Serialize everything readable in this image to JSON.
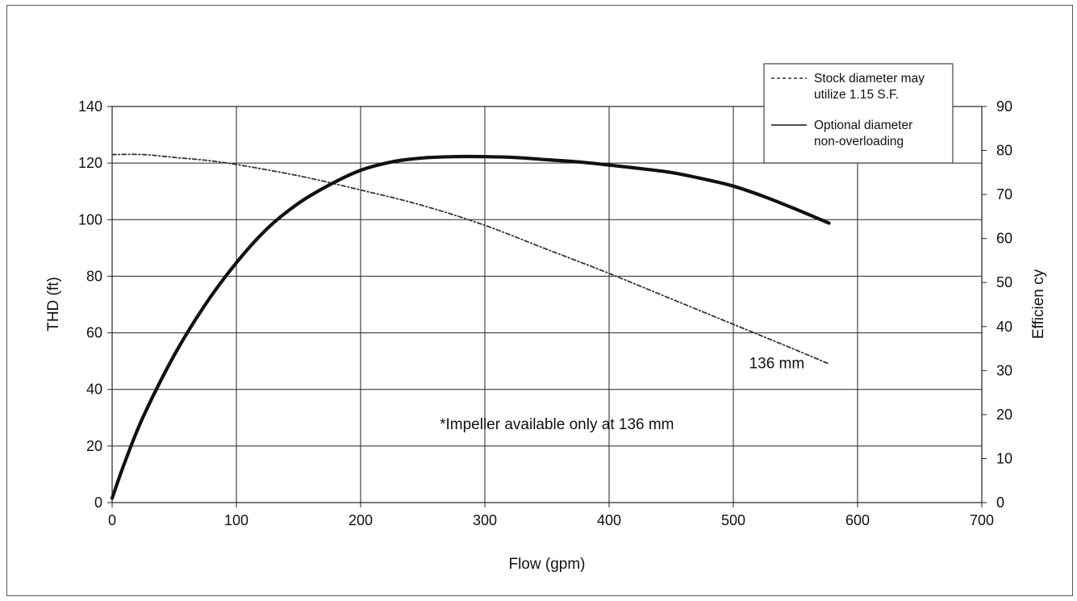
{
  "chart_data": {
    "type": "line",
    "title": "",
    "xlabel": "Flow (gpm)",
    "ylabel": "THD (ft)",
    "y2label": "Efficien cy",
    "xlim": [
      0,
      700
    ],
    "ylim": [
      0,
      140
    ],
    "y2lim": [
      0,
      90
    ],
    "x_ticks": [
      0,
      100,
      200,
      300,
      400,
      500,
      600,
      700
    ],
    "y_ticks": [
      0,
      20,
      40,
      60,
      80,
      100,
      120,
      140
    ],
    "y2_ticks": [
      0,
      10,
      20,
      30,
      40,
      50,
      60,
      70,
      80,
      90
    ],
    "grid": true,
    "legend_position": "top-right",
    "series": [
      {
        "name": "Stock diameter may utilize 1.15 S.F.",
        "legend_lines": [
          "Stock diameter may",
          "utilize 1.15 S.F."
        ],
        "axis": "left",
        "style": "dashdot",
        "color": "#333333",
        "x": [
          0,
          25,
          50,
          75,
          100,
          150,
          200,
          250,
          300,
          350,
          400,
          450,
          500,
          550,
          577
        ],
        "y": [
          123,
          123,
          122,
          121,
          119.5,
          115.5,
          110.5,
          105,
          98,
          89.5,
          81,
          72,
          63,
          54,
          49
        ]
      },
      {
        "name": "Optional diameter non-overloading",
        "legend_lines": [
          "Optional diameter",
          "non-overloading"
        ],
        "axis": "right",
        "style": "solid",
        "color": "#111111",
        "x": [
          0,
          10,
          25,
          50,
          75,
          100,
          125,
          150,
          175,
          200,
          225,
          250,
          275,
          300,
          325,
          350,
          375,
          400,
          425,
          450,
          475,
          500,
          525,
          550,
          577
        ],
        "y": [
          1,
          9,
          19.5,
          33.5,
          45,
          54.5,
          62.3,
          68,
          72.2,
          75.5,
          77.4,
          78.3,
          78.6,
          78.6,
          78.4,
          77.9,
          77.4,
          76.7,
          75.9,
          75,
          73.6,
          71.9,
          69.5,
          66.7,
          63.5
        ]
      }
    ],
    "annotations": [
      {
        "text": "136 mm",
        "x": 535,
        "y": 47.5
      },
      {
        "text": "*Impeller available only at 136 mm",
        "x": 358,
        "y": 26
      }
    ]
  }
}
